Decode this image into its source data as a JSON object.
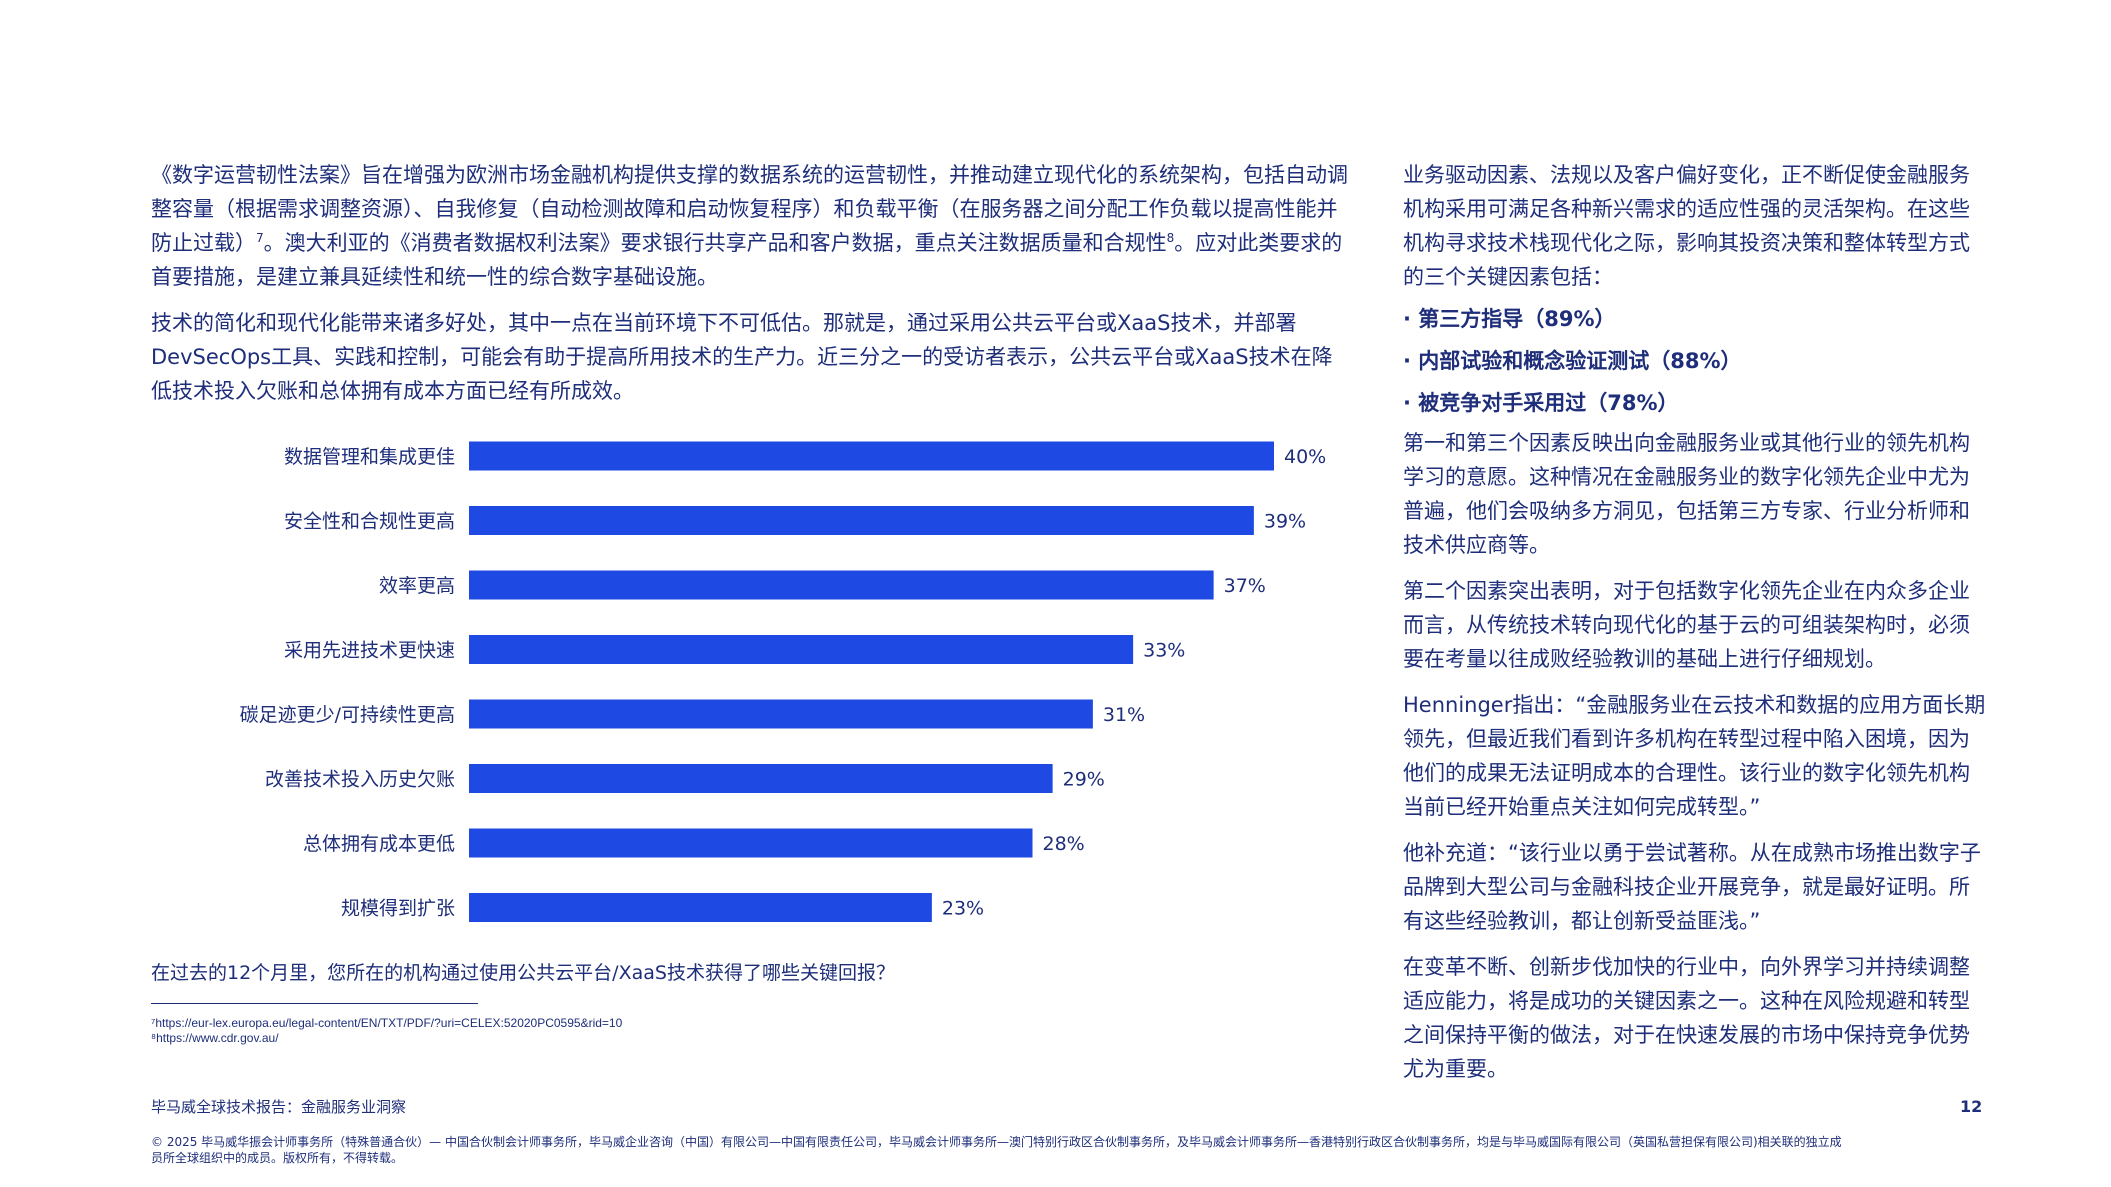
{
  "left": {
    "p1": "《数字运营韧性法案》旨在增强为欧洲市场金融机构提供支撑的数据系统的运营韧性，并推动建立现代化的系统架构，包括自动调整容量（根据需求调整资源）、自我修复（自动检测故障和启动恢复程序）和负载平衡（在服务器之间分配工作负载以提高性能并防止过载）",
    "fn7": "7",
    "p1b": "。澳大利亚的《消费者数据权利法案》要求银行共享产品和客户数据，重点关注数据质量和合规性",
    "fn8": "8",
    "p1c": "。应对此类要求的首要措施，是建立兼具延续性和统一性的综合数字基础设施。",
    "p2": "技术的简化和现代化能带来诸多好处，其中一点在当前环境下不可低估。那就是，通过采用公共云平台或XaaS技术，并部署DevSecOps工具、实践和控制，可能会有助于提高所用技术的生产力。近三分之一的受访者表示，公共云平台或XaaS技术在降低技术投入欠账和总体拥有成本方面已经有所成效。"
  },
  "chart_data": {
    "type": "bar",
    "orientation": "horizontal",
    "categories": [
      "数据管理和集成更佳",
      "安全性和合规性更高",
      "效率更高",
      "采用先进技术更快速",
      "碳足迹更少/可持续性更高",
      "改善技术投入历史欠账",
      "总体拥有成本更低",
      "规模得到扩张"
    ],
    "values": [
      40,
      39,
      37,
      33,
      31,
      29,
      28,
      23
    ],
    "value_labels": [
      "40%",
      "39%",
      "37%",
      "33%",
      "31%",
      "29%",
      "28%",
      "23%"
    ],
    "bar_color": "#1e49e2",
    "xlim": [
      0,
      40
    ],
    "grid": false,
    "legend": "none"
  },
  "question": "在过去的12个月里，您所在的机构通过使用公共云平台/XaaS技术获得了哪些关键回报？",
  "footnotes": {
    "f7": "⁷https://eur-lex.europa.eu/legal-content/EN/TXT/PDF/?uri=CELEX:52020PC0595&rid=10",
    "f8": "⁸https://www.cdr.gov.au/"
  },
  "right": {
    "p1": "业务驱动因素、法规以及客户偏好变化，正不断促使金融服务机构采用可满足各种新兴需求的适应性强的灵活架构。在这些机构寻求技术栈现代化之际，影响其投资决策和整体转型方式的三个关键因素包括：",
    "bullets": [
      "· 第三方指导（89%）",
      "· 内部试验和概念验证测试（88%）",
      "· 被竞争对手采用过（78%）"
    ],
    "p2": "第一和第三个因素反映出向金融服务业或其他行业的领先机构学习的意愿。这种情况在金融服务业的数字化领先企业中尤为普遍，他们会吸纳多方洞见，包括第三方专家、行业分析师和技术供应商等。",
    "p3": "第二个因素突出表明，对于包括数字化领先企业在内众多企业而言，从传统技术转向现代化的基于云的可组装架构时，必须要在考量以往成败经验教训的基础上进行仔细规划。",
    "p4": "Henninger指出：“金融服务业在云技术和数据的应用方面长期领先，但最近我们看到许多机构在转型过程中陷入困境，因为他们的成果无法证明成本的合理性。该行业的数字化领先机构当前已经开始重点关注如何完成转型。”",
    "p5": "他补充道：“该行业以勇于尝试著称。从在成熟市场推出数字子品牌到大型公司与金融科技企业开展竞争，就是最好证明。所有这些经验教训，都让创新受益匪浅。”",
    "p6": "在变革不断、创新步伐加快的行业中，向外界学习并持续调整适应能力，将是成功的关键因素之一。这种在风险规避和转型之间保持平衡的做法，对于在快速发展的市场中保持竞争优势尤为重要。"
  },
  "footer": {
    "report_title": "毕马威全球技术报告：金融服务业洞察",
    "page_number": "12",
    "copyright": "© 2025 毕马威华振会计师事务所（特殊普通合伙）— 中国合伙制会计师事务所，毕马威企业咨询（中国）有限公司—中国有限责任公司，毕马威会计师事务所—澳门特别行政区合伙制事务所，及毕马威会计师事务所—香港特别行政区合伙制事务所，均是与毕马威国际有限公司（英国私营担保有限公司)相关联的独立成员所全球组织中的成员。版权所有，不得转载。"
  }
}
